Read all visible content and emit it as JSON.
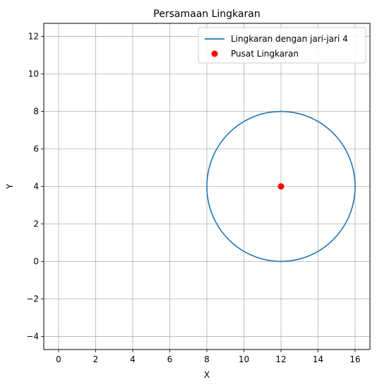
{
  "chart_data": {
    "type": "line",
    "title": "Persamaan Lingkaran",
    "xlabel": "X",
    "ylabel": "Y",
    "xlim": [
      -0.8,
      16.8
    ],
    "ylim": [
      -4.7,
      12.7
    ],
    "xticks": [
      0,
      2,
      4,
      6,
      8,
      10,
      12,
      14,
      16
    ],
    "yticks": [
      -4,
      -2,
      0,
      2,
      4,
      6,
      8,
      10,
      12
    ],
    "grid": true,
    "aspect": "equal",
    "legend_position": "top-right",
    "series": [
      {
        "name": "Lingkaran dengan jari-jari 4",
        "kind": "circle",
        "center": [
          12,
          4
        ],
        "radius": 4,
        "color": "#1f77b4"
      },
      {
        "name": "Pusat Lingkaran",
        "kind": "scatter",
        "points": [
          [
            12,
            4
          ]
        ],
        "color": "#ff0000"
      }
    ]
  }
}
